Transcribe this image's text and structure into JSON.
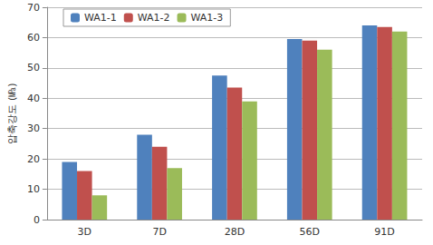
{
  "chart_data": {
    "type": "bar",
    "y_label": "압축강도 (㎫)",
    "categories": [
      "3D",
      "7D",
      "28D",
      "56D",
      "91D"
    ],
    "series": [
      {
        "name": "WA1-1",
        "color": "#4f81bd",
        "values": [
          19,
          28,
          47.5,
          59.5,
          64
        ]
      },
      {
        "name": "WA1-2",
        "color": "#c0504d",
        "values": [
          16,
          24,
          43.5,
          59,
          63.5
        ]
      },
      {
        "name": "WA1-3",
        "color": "#9bbb59",
        "values": [
          8,
          17,
          39,
          56,
          62
        ]
      }
    ],
    "ylim": [
      0,
      70
    ],
    "yticks": [
      0,
      10,
      20,
      30,
      40,
      50,
      60,
      70
    ],
    "grid": true,
    "legend": "upper left"
  }
}
